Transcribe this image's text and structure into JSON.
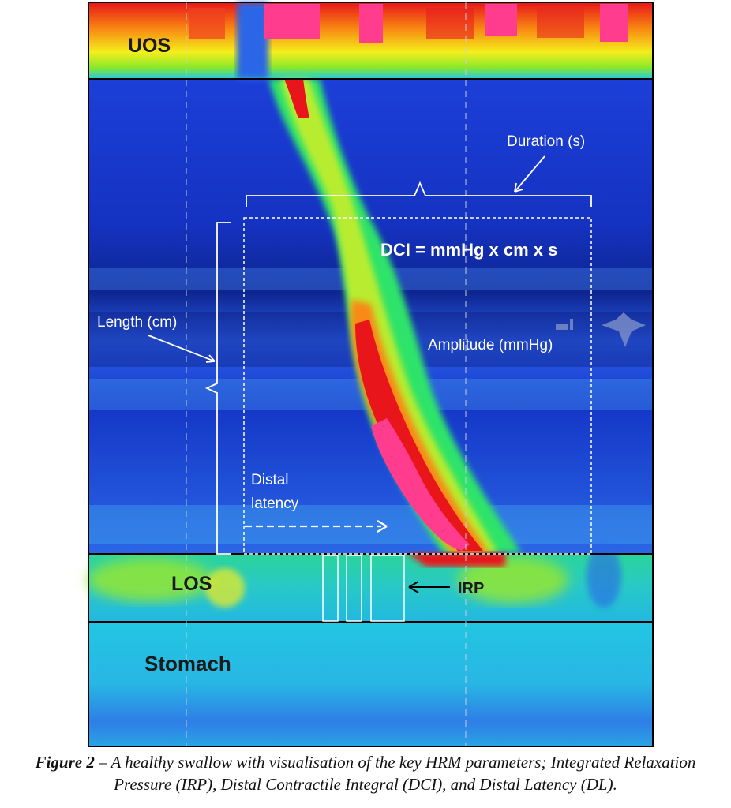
{
  "figure": {
    "regions": {
      "uos": "UOS",
      "los": "LOS",
      "stomach": "Stomach"
    },
    "annotations": {
      "duration": "Duration (s)",
      "dci": "DCI = mmHg x cm x s",
      "length": "Length (cm)",
      "amplitude": "Amplitude (mmHg)",
      "distal_latency_line1": "Distal",
      "distal_latency_line2": "latency",
      "irp": "IRP"
    },
    "colors": {
      "background_blue": "#1c3fd8",
      "deep_blue": "#0b1f8c",
      "cyan": "#22c8e6",
      "green": "#2fe36a",
      "yellow": "#f4ee1c",
      "orange": "#f88a12",
      "red": "#e8161a",
      "magenta": "#ff3c8e"
    }
  },
  "caption": {
    "label": "Figure 2",
    "text": " – A healthy swallow with visualisation of the key HRM parameters; Integrated Relaxation Pressure (IRP), Distal Contractile Integral (DCI), and Distal Latency (DL)."
  }
}
